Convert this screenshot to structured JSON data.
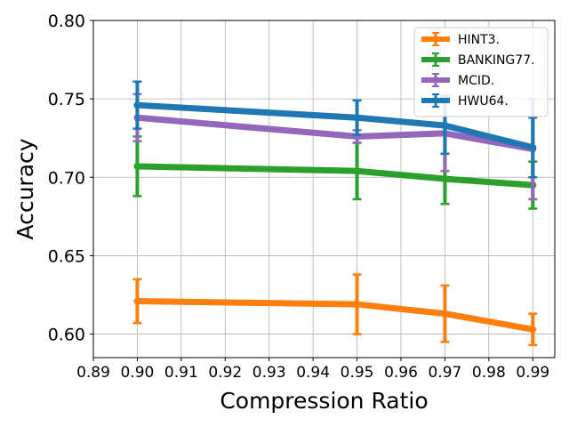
{
  "chart_data": {
    "type": "line",
    "title": "",
    "xlabel": "Compression Ratio",
    "ylabel": "Accuracy",
    "xlim": [
      0.89,
      0.995
    ],
    "ylim": [
      0.585,
      0.8
    ],
    "x_ticks": [
      "0.89",
      "0.90",
      "0.91",
      "0.92",
      "0.93",
      "0.94",
      "0.95",
      "0.96",
      "0.97",
      "0.98",
      "0.99"
    ],
    "y_ticks": [
      "0.60",
      "0.65",
      "0.70",
      "0.75",
      "0.80"
    ],
    "grid": true,
    "legend_position": "top-right",
    "x": [
      0.9,
      0.95,
      0.97,
      0.99
    ],
    "series": [
      {
        "name": "HINT3.",
        "color": "#ff7f0e",
        "values": [
          0.621,
          0.619,
          0.613,
          0.603
        ],
        "errors": [
          0.014,
          0.019,
          0.018,
          0.01
        ]
      },
      {
        "name": "BANKING77.",
        "color": "#2ca02c",
        "values": [
          0.707,
          0.704,
          0.699,
          0.695
        ],
        "errors": [
          0.019,
          0.018,
          0.016,
          0.015
        ]
      },
      {
        "name": "MCID.",
        "color": "#9467bd",
        "values": [
          0.738,
          0.726,
          0.728,
          0.718
        ],
        "errors": [
          0.015,
          0.004,
          0.024,
          0.032
        ]
      },
      {
        "name": "HWU64.",
        "color": "#1f77b4",
        "values": [
          0.746,
          0.738,
          0.733,
          0.719
        ],
        "errors": [
          0.015,
          0.011,
          0.018,
          0.019
        ]
      }
    ]
  }
}
